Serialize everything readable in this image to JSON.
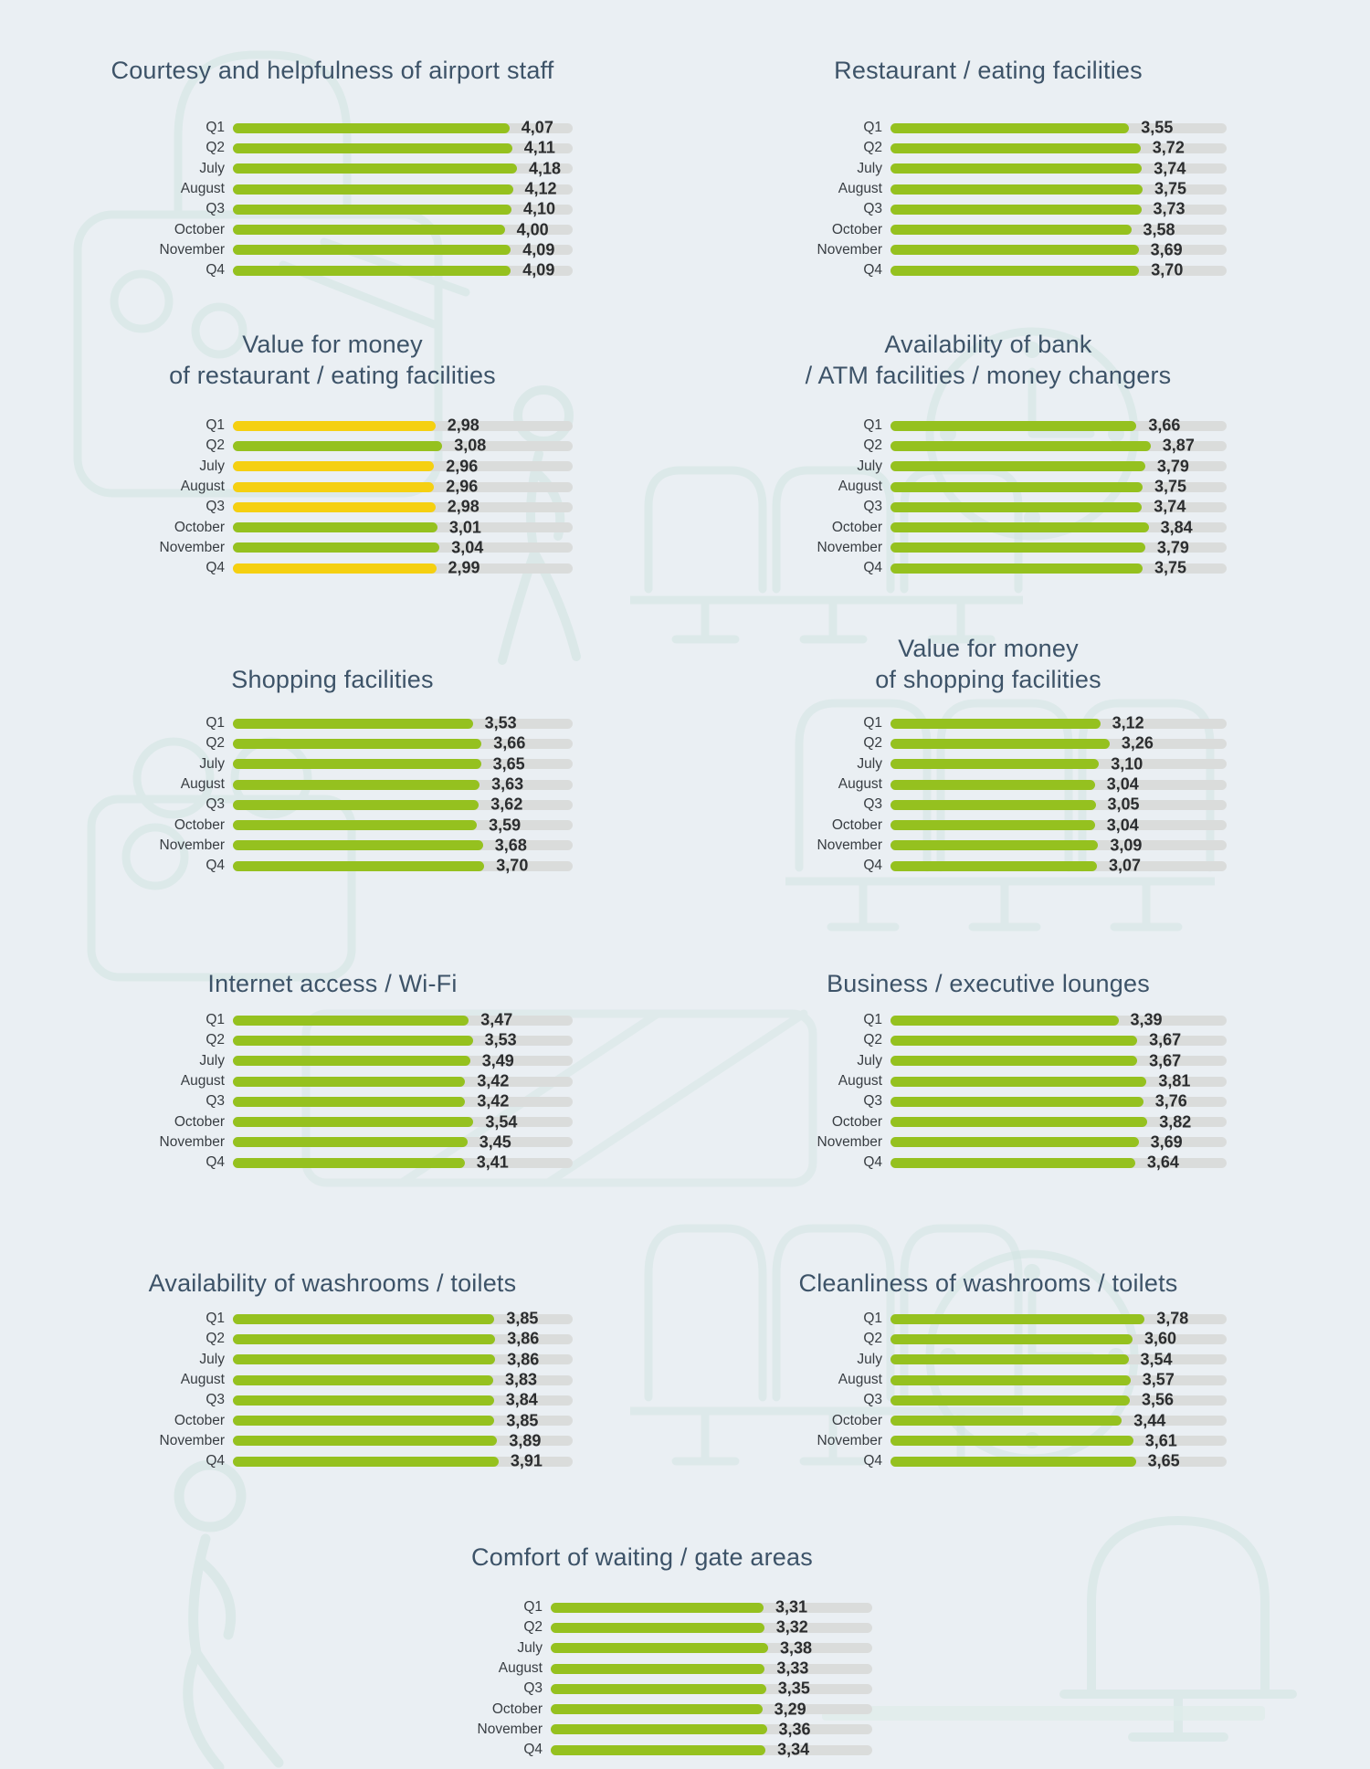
{
  "page": {
    "background": "#eaeff3"
  },
  "colors": {
    "green": "#95c11f",
    "yellow": "#f5d011",
    "track": "#dadcdb",
    "title": "#3d5368",
    "category": "#383d42",
    "value": "#2b2d2f",
    "decor": "#d2e5e2"
  },
  "rating_scale": {
    "min": 0,
    "max": 5
  },
  "low_score_color_threshold": 3.0,
  "categories": [
    "Q1",
    "Q2",
    "July",
    "August",
    "Q3",
    "October",
    "November",
    "Q4"
  ],
  "decor_icons": [
    "shopping-bag-icon",
    "clock-icon",
    "airport-seats-icon",
    "walking-person-icon",
    "shopping-bags-icon",
    "airport-seats-tall-icon",
    "gift-box-icon",
    "clock-icon",
    "airport-seats-icon",
    "armchair-icon",
    "walking-person-icon",
    "bench-icon"
  ],
  "chart_data": [
    {
      "type": "bar",
      "title": "Courtesy and helpfulness of airport staff",
      "title_lines": [
        "Courtesy and helpfulness of airport staff"
      ],
      "categories": [
        "Q1",
        "Q2",
        "July",
        "August",
        "Q3",
        "October",
        "November",
        "Q4"
      ],
      "values": [
        4.07,
        4.11,
        4.18,
        4.12,
        4.1,
        4.0,
        4.09,
        4.09
      ],
      "value_labels": [
        "4,07",
        "4,11",
        "4,18",
        "4,12",
        "4,10",
        "4,00",
        "4,09",
        "4,09"
      ],
      "bar_colors": [
        "green",
        "green",
        "green",
        "green",
        "green",
        "green",
        "green",
        "green"
      ],
      "xlim": [
        0,
        5
      ]
    },
    {
      "type": "bar",
      "title": "Restaurant / eating facilities",
      "title_lines": [
        "Restaurant / eating facilities"
      ],
      "categories": [
        "Q1",
        "Q2",
        "July",
        "August",
        "Q3",
        "October",
        "November",
        "Q4"
      ],
      "values": [
        3.55,
        3.72,
        3.74,
        3.75,
        3.73,
        3.58,
        3.69,
        3.7
      ],
      "value_labels": [
        "3,55",
        "3,72",
        "3,74",
        "3,75",
        "3,73",
        "3,58",
        "3,69",
        "3,70"
      ],
      "bar_colors": [
        "green",
        "green",
        "green",
        "green",
        "green",
        "green",
        "green",
        "green"
      ],
      "xlim": [
        0,
        5
      ]
    },
    {
      "type": "bar",
      "title": "Value for money of restaurant / eating facilities",
      "title_lines": [
        "Value for money",
        "of restaurant / eating facilities"
      ],
      "categories": [
        "Q1",
        "Q2",
        "July",
        "August",
        "Q3",
        "October",
        "November",
        "Q4"
      ],
      "values": [
        2.98,
        3.08,
        2.96,
        2.96,
        2.98,
        3.01,
        3.04,
        2.99
      ],
      "value_labels": [
        "2,98",
        "3,08",
        "2,96",
        "2,96",
        "2,98",
        "3,01",
        "3,04",
        "2,99"
      ],
      "bar_colors": [
        "yellow",
        "green",
        "yellow",
        "yellow",
        "yellow",
        "green",
        "green",
        "yellow"
      ],
      "xlim": [
        0,
        5
      ]
    },
    {
      "type": "bar",
      "title": "Availability of bank / ATM facilities / money changers",
      "title_lines": [
        "Availability of bank",
        "/ ATM facilities / money changers"
      ],
      "categories": [
        "Q1",
        "Q2",
        "July",
        "August",
        "Q3",
        "October",
        "November",
        "Q4"
      ],
      "values": [
        3.66,
        3.87,
        3.79,
        3.75,
        3.74,
        3.84,
        3.79,
        3.75
      ],
      "value_labels": [
        "3,66",
        "3,87",
        "3,79",
        "3,75",
        "3,74",
        "3,84",
        "3,79",
        "3,75"
      ],
      "bar_colors": [
        "green",
        "green",
        "green",
        "green",
        "green",
        "green",
        "green",
        "green"
      ],
      "xlim": [
        0,
        5
      ]
    },
    {
      "type": "bar",
      "title": "Shopping facilities",
      "title_lines": [
        "Shopping facilities"
      ],
      "categories": [
        "Q1",
        "Q2",
        "July",
        "August",
        "Q3",
        "October",
        "November",
        "Q4"
      ],
      "values": [
        3.53,
        3.66,
        3.65,
        3.63,
        3.62,
        3.59,
        3.68,
        3.7
      ],
      "value_labels": [
        "3,53",
        "3,66",
        "3,65",
        "3,63",
        "3,62",
        "3,59",
        "3,68",
        "3,70"
      ],
      "bar_colors": [
        "green",
        "green",
        "green",
        "green",
        "green",
        "green",
        "green",
        "green"
      ],
      "xlim": [
        0,
        5
      ]
    },
    {
      "type": "bar",
      "title": "Value for money of shopping facilities",
      "title_lines": [
        "Value for money",
        "of shopping facilities"
      ],
      "categories": [
        "Q1",
        "Q2",
        "July",
        "August",
        "Q3",
        "October",
        "November",
        "Q4"
      ],
      "values": [
        3.12,
        3.26,
        3.1,
        3.04,
        3.05,
        3.04,
        3.09,
        3.07
      ],
      "value_labels": [
        "3,12",
        "3,26",
        "3,10",
        "3,04",
        "3,05",
        "3,04",
        "3,09",
        "3,07"
      ],
      "bar_colors": [
        "green",
        "green",
        "green",
        "green",
        "green",
        "green",
        "green",
        "green"
      ],
      "xlim": [
        0,
        5
      ]
    },
    {
      "type": "bar",
      "title": "Internet access / Wi-Fi",
      "title_lines": [
        "Internet access / Wi-Fi"
      ],
      "categories": [
        "Q1",
        "Q2",
        "July",
        "August",
        "Q3",
        "October",
        "November",
        "Q4"
      ],
      "values": [
        3.47,
        3.53,
        3.49,
        3.42,
        3.42,
        3.54,
        3.45,
        3.41
      ],
      "value_labels": [
        "3,47",
        "3,53",
        "3,49",
        "3,42",
        "3,42",
        "3,54",
        "3,45",
        "3,41"
      ],
      "bar_colors": [
        "green",
        "green",
        "green",
        "green",
        "green",
        "green",
        "green",
        "green"
      ],
      "xlim": [
        0,
        5
      ]
    },
    {
      "type": "bar",
      "title": "Business / executive lounges",
      "title_lines": [
        "Business / executive lounges"
      ],
      "categories": [
        "Q1",
        "Q2",
        "July",
        "August",
        "Q3",
        "October",
        "November",
        "Q4"
      ],
      "values": [
        3.39,
        3.67,
        3.67,
        3.81,
        3.76,
        3.82,
        3.69,
        3.64
      ],
      "value_labels": [
        "3,39",
        "3,67",
        "3,67",
        "3,81",
        "3,76",
        "3,82",
        "3,69",
        "3,64"
      ],
      "bar_colors": [
        "green",
        "green",
        "green",
        "green",
        "green",
        "green",
        "green",
        "green"
      ],
      "xlim": [
        0,
        5
      ]
    },
    {
      "type": "bar",
      "title": "Availability of washrooms / toilets",
      "title_lines": [
        "Availability of washrooms / toilets"
      ],
      "categories": [
        "Q1",
        "Q2",
        "July",
        "August",
        "Q3",
        "October",
        "November",
        "Q4"
      ],
      "values": [
        3.85,
        3.86,
        3.86,
        3.83,
        3.84,
        3.85,
        3.89,
        3.91
      ],
      "value_labels": [
        "3,85",
        "3,86",
        "3,86",
        "3,83",
        "3,84",
        "3,85",
        "3,89",
        "3,91"
      ],
      "bar_colors": [
        "green",
        "green",
        "green",
        "green",
        "green",
        "green",
        "green",
        "green"
      ],
      "xlim": [
        0,
        5
      ]
    },
    {
      "type": "bar",
      "title": "Cleanliness of washrooms / toilets",
      "title_lines": [
        "Cleanliness of washrooms / toilets"
      ],
      "categories": [
        "Q1",
        "Q2",
        "July",
        "August",
        "Q3",
        "October",
        "November",
        "Q4"
      ],
      "values": [
        3.78,
        3.6,
        3.54,
        3.57,
        3.56,
        3.44,
        3.61,
        3.65
      ],
      "value_labels": [
        "3,78",
        "3,60",
        "3,54",
        "3,57",
        "3,56",
        "3,44",
        "3,61",
        "3,65"
      ],
      "bar_colors": [
        "green",
        "green",
        "green",
        "green",
        "green",
        "green",
        "green",
        "green"
      ],
      "xlim": [
        0,
        5
      ]
    },
    {
      "type": "bar",
      "title": "Comfort of waiting / gate areas",
      "title_lines": [
        "Comfort of waiting / gate areas"
      ],
      "categories": [
        "Q1",
        "Q2",
        "July",
        "August",
        "Q3",
        "October",
        "November",
        "Q4"
      ],
      "values": [
        3.31,
        3.32,
        3.38,
        3.33,
        3.35,
        3.29,
        3.36,
        3.34
      ],
      "value_labels": [
        "3,31",
        "3,32",
        "3,38",
        "3,33",
        "3,35",
        "3,29",
        "3,36",
        "3,34"
      ],
      "bar_colors": [
        "green",
        "green",
        "green",
        "green",
        "green",
        "green",
        "green",
        "green"
      ],
      "xlim": [
        0,
        5
      ]
    }
  ]
}
